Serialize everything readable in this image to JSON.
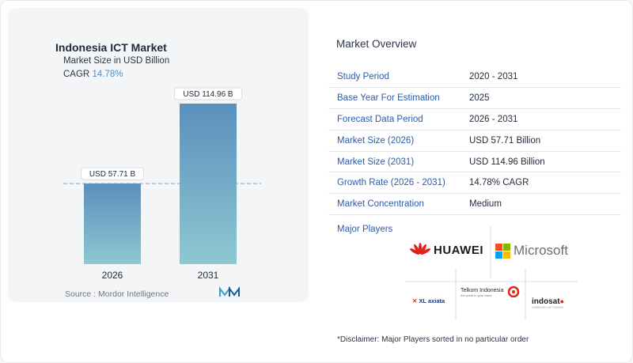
{
  "header": {
    "title": "Indonesia ICT Market",
    "subtitle": "Market Size in USD Billion",
    "cagr_label": "CAGR",
    "cagr_value": "14.78%"
  },
  "chart_data": {
    "type": "bar",
    "categories": [
      "2026",
      "2031"
    ],
    "values": [
      57.71,
      114.96
    ],
    "data_labels": [
      "USD 57.71 B",
      "USD 114.96 B"
    ],
    "title": "Indonesia ICT Market",
    "subtitle": "Market Size in USD Billion",
    "ylim": [
      0,
      114.96
    ],
    "grid": false,
    "reference_line_value": 57.71,
    "colors": {
      "bar_top": "#5b8fbd",
      "bar_bottom": "#8ec8d2"
    }
  },
  "source": "Source :  Mordor Intelligence",
  "overview": {
    "title": "Market Overview",
    "rows": [
      {
        "key": "Study Period",
        "value": "2020 - 2031"
      },
      {
        "key": "Base Year For Estimation",
        "value": "2025"
      },
      {
        "key": "Forecast Data Period",
        "value": "2026 - 2031"
      },
      {
        "key": "Market Size (2026)",
        "value": "USD 57.71 Billion"
      },
      {
        "key": "Market Size (2031)",
        "value": "USD 114.96 Billion"
      },
      {
        "key": "Growth Rate (2026 - 2031)",
        "value": "14.78% CAGR"
      },
      {
        "key": "Market Concentration",
        "value": "Medium"
      }
    ]
  },
  "players": {
    "label": "Major Players",
    "huawei": "HUAWEI",
    "microsoft": "Microsoft",
    "telkom": "Telkom Indonesia",
    "telkom_tagline": "the world in your hand",
    "xl": "XL axiata",
    "indosat": "indosat",
    "indosat_tagline": "OOREDOO HUTCHISON"
  },
  "disclaimer": "*Disclaimer: Major Players sorted in no particular order",
  "colors": {
    "accent": "#2a5db0",
    "cagr": "#4f8fc9",
    "huawei_red": "#e2231a"
  }
}
